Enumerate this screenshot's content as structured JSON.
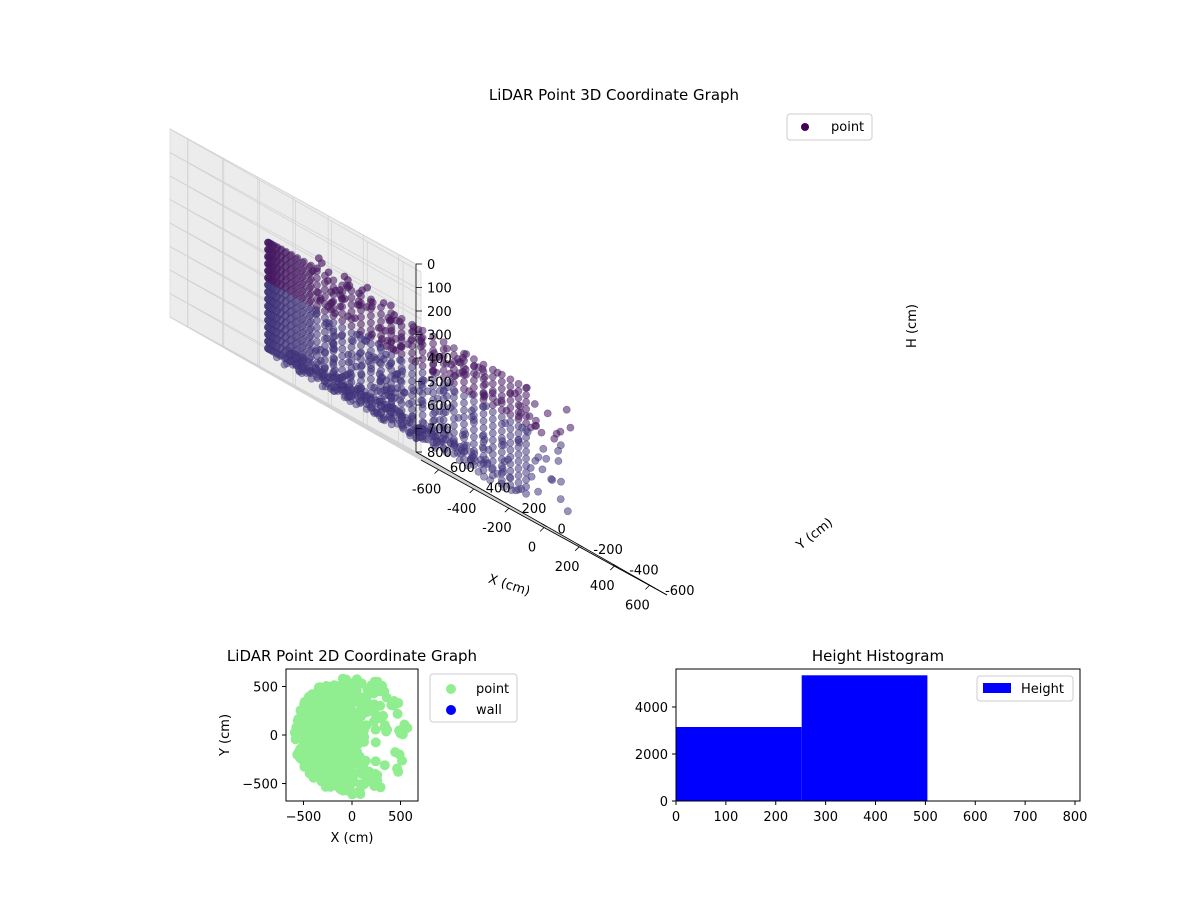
{
  "figure": {
    "chart_data": [
      {
        "type": "scatter3d",
        "title": "LiDAR Point 3D Coordinate Graph",
        "xlabel": "X (cm)",
        "ylabel": "Y (cm)",
        "zlabel": "H (cm)",
        "xlim": [
          -700,
          700
        ],
        "ylim": [
          -700,
          700
        ],
        "zlim": [
          800,
          0
        ],
        "xticks": [
          "-600",
          "-400",
          "-200",
          "0",
          "200",
          "400",
          "600"
        ],
        "yticks": [
          "-600",
          "-400",
          "-200",
          "0",
          "200",
          "400",
          "600"
        ],
        "zticks": [
          "0",
          "100",
          "200",
          "300",
          "400",
          "500",
          "600",
          "700",
          "800"
        ],
        "legend": [
          "point"
        ],
        "legend_position": "upper-right",
        "colors": {
          "point": "#440154",
          "mid": "#3f3a82",
          "pane": "#f2f2f2"
        },
        "description_series": "wall points on circle of radius ~600 cm for angles 90-270 deg, heights 250-700 cm; scattered points to the +X side",
        "wall_radius": 600,
        "wall_angle_range": [
          90,
          270
        ],
        "wall_height_range": [
          250,
          700
        ]
      },
      {
        "type": "scatter",
        "title": "LiDAR Point 2D Coordinate Graph",
        "xlabel": "X (cm)",
        "ylabel": "Y (cm)",
        "xlim": [
          -680,
          680
        ],
        "ylim": [
          -680,
          680
        ],
        "xticks": [
          -500,
          0,
          500
        ],
        "yticks": [
          -500,
          0,
          500
        ],
        "legend": [
          "point",
          "wall"
        ],
        "legend_position": "outside-right",
        "colors": {
          "point": "#90ee90",
          "wall": "#0000ff"
        }
      },
      {
        "type": "bar",
        "title": "Height Histogram",
        "bins": [
          [
            0,
            252
          ],
          [
            252,
            504
          ],
          [
            504,
            756
          ]
        ],
        "values": [
          3150,
          5350,
          0
        ],
        "xlim": [
          0,
          810
        ],
        "ylim": [
          0,
          5617
        ],
        "xticks": [
          0,
          100,
          200,
          300,
          400,
          500,
          600,
          700,
          800
        ],
        "yticks": [
          0,
          2000,
          4000
        ],
        "legend": [
          "Height"
        ],
        "legend_position": "upper-right",
        "colors": {
          "bar": "#0000ff"
        }
      }
    ]
  }
}
